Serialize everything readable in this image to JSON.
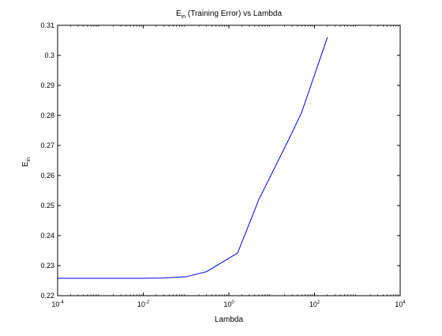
{
  "chart_data": {
    "type": "line",
    "title_main": "E",
    "title_sub": "in",
    "title_rest": " (Training Error) vs Lambda",
    "xlabel": "Lambda",
    "ylabel_main": "E",
    "ylabel_sub": "in",
    "x_scale": "log",
    "xlim": [
      0.0001,
      10000
    ],
    "ylim": [
      0.22,
      0.31
    ],
    "x_ticks": [
      {
        "base": "10",
        "exp": "-4",
        "value": 0.0001
      },
      {
        "base": "10",
        "exp": "-2",
        "value": 0.01
      },
      {
        "base": "10",
        "exp": "0",
        "value": 1
      },
      {
        "base": "10",
        "exp": "2",
        "value": 100
      },
      {
        "base": "10",
        "exp": "4",
        "value": 10000
      }
    ],
    "y_ticks": [
      "0.22",
      "0.23",
      "0.24",
      "0.25",
      "0.26",
      "0.27",
      "0.28",
      "0.29",
      "0.3",
      "0.31"
    ],
    "grid": false,
    "series": [
      {
        "color": "#0000ff",
        "x": [
          0.0001,
          0.001,
          0.01,
          0.03,
          0.1,
          0.3,
          1.6,
          5,
          25,
          50,
          200
        ],
        "y": [
          0.2258,
          0.2258,
          0.2258,
          0.2259,
          0.2263,
          0.228,
          0.2342,
          0.252,
          0.272,
          0.281,
          0.306
        ]
      }
    ]
  }
}
